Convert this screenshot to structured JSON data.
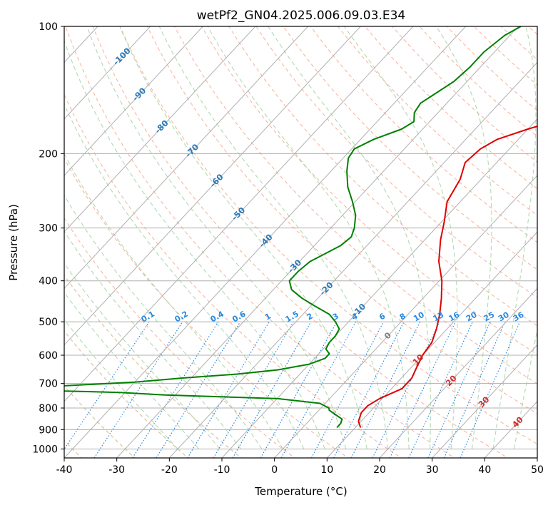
{
  "chart_data": {
    "type": "skew-t",
    "title": "wetPf2_GN04.2025.006.09.03.E34",
    "xlabel": "Temperature (°C)",
    "ylabel": "Pressure (hPa)",
    "xlim": [
      -40,
      50
    ],
    "ylim": [
      1050,
      100
    ],
    "y_scale": "log",
    "x_ticks": [
      -40,
      -30,
      -20,
      -10,
      0,
      10,
      20,
      30,
      40,
      50
    ],
    "y_ticks": [
      100,
      200,
      300,
      400,
      500,
      600,
      700,
      800,
      900,
      1000
    ],
    "grid": true,
    "isotherm_values": [
      -100,
      -90,
      -80,
      -70,
      -60,
      -50,
      -40,
      -30,
      -20,
      -10,
      0,
      10,
      20,
      30,
      40
    ],
    "mixing_ratio_values": [
      "0.1",
      "0.2",
      "0.4",
      "0.6",
      "1",
      "1.5",
      "2",
      "3",
      "4",
      "6",
      "8",
      "10",
      "13",
      "16",
      "20",
      "25",
      "30",
      "36"
    ],
    "colors": {
      "temperature": "#e00000",
      "dewpoint": "#008000",
      "isotherm_cold": "#2a78b8",
      "isotherm_warm": "#d03030",
      "isotherm_zero": "#808080",
      "mixing_ratio": "#2a8ae0",
      "dry_adiabat": "#f5a58a",
      "moist_adiabat": "#9fd09f",
      "adiabat_tan": "#d6b48a",
      "grid": "#b0b0b0"
    },
    "series": [
      {
        "key": "temperature",
        "points": [
          [
            890,
            11.0
          ],
          [
            860,
            9.5
          ],
          [
            820,
            8.5
          ],
          [
            790,
            8.5
          ],
          [
            760,
            9.5
          ],
          [
            720,
            12.0
          ],
          [
            680,
            12.0
          ],
          [
            640,
            11.0
          ],
          [
            600,
            10.0
          ],
          [
            560,
            9.5
          ],
          [
            520,
            8.0
          ],
          [
            480,
            6.0
          ],
          [
            440,
            3.5
          ],
          [
            400,
            0.5
          ],
          [
            360,
            -3.5
          ],
          [
            320,
            -7.0
          ],
          [
            290,
            -9.5
          ],
          [
            260,
            -12.5
          ],
          [
            230,
            -14.0
          ],
          [
            210,
            -16.0
          ],
          [
            195,
            -15.5
          ],
          [
            185,
            -14.0
          ],
          [
            175,
            -10.0
          ],
          [
            165,
            -5.0
          ],
          [
            158,
            -2.0
          ],
          [
            150,
            -1.0
          ],
          [
            140,
            -2.0
          ],
          [
            130,
            -3.0
          ],
          [
            120,
            -4.0
          ],
          [
            110,
            -6.5
          ],
          [
            100,
            -9.0
          ]
        ]
      },
      {
        "key": "dewpoint",
        "points": [
          [
            890,
            6.5
          ],
          [
            870,
            6.5
          ],
          [
            850,
            6.0
          ],
          [
            830,
            4.0
          ],
          [
            810,
            2.0
          ],
          [
            800,
            1.5
          ],
          [
            780,
            -1.0
          ],
          [
            760,
            -10.0
          ],
          [
            745,
            -32.0
          ],
          [
            735,
            -41.0
          ],
          [
            725,
            -60.0
          ],
          [
            718,
            -63.0
          ],
          [
            710,
            -54.0
          ],
          [
            695,
            -40.0
          ],
          [
            680,
            -32.0
          ],
          [
            665,
            -22.0
          ],
          [
            650,
            -15.0
          ],
          [
            630,
            -10.0
          ],
          [
            610,
            -8.0
          ],
          [
            595,
            -8.0
          ],
          [
            580,
            -9.5
          ],
          [
            560,
            -10.0
          ],
          [
            540,
            -10.0
          ],
          [
            520,
            -10.5
          ],
          [
            500,
            -12.5
          ],
          [
            480,
            -15.0
          ],
          [
            460,
            -19.0
          ],
          [
            440,
            -23.0
          ],
          [
            420,
            -26.5
          ],
          [
            400,
            -28.5
          ],
          [
            380,
            -28.5
          ],
          [
            360,
            -28.0
          ],
          [
            345,
            -26.5
          ],
          [
            330,
            -25.0
          ],
          [
            315,
            -24.5
          ],
          [
            300,
            -25.5
          ],
          [
            280,
            -27.5
          ],
          [
            260,
            -30.5
          ],
          [
            240,
            -34.0
          ],
          [
            220,
            -37.0
          ],
          [
            205,
            -39.0
          ],
          [
            195,
            -39.5
          ],
          [
            185,
            -37.5
          ],
          [
            175,
            -34.0
          ],
          [
            168,
            -33.0
          ],
          [
            160,
            -34.5
          ],
          [
            152,
            -35.0
          ],
          [
            145,
            -34.0
          ],
          [
            135,
            -32.5
          ],
          [
            125,
            -32.0
          ],
          [
            115,
            -32.0
          ],
          [
            105,
            -31.0
          ],
          [
            100,
            -29.5
          ]
        ]
      }
    ]
  }
}
